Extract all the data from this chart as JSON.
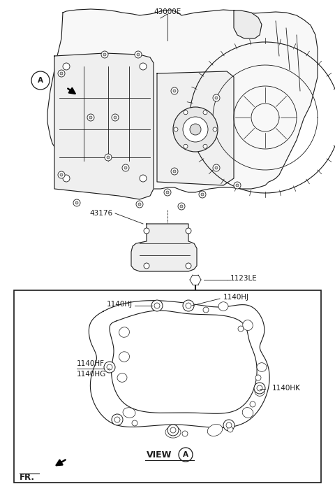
{
  "bg_color": "#ffffff",
  "lc": "#1a1a1a",
  "figsize": [
    4.8,
    7.02
  ],
  "dpi": 100,
  "label_43000E": "43000E",
  "label_43176": "43176",
  "label_1123LE": "1123LE",
  "label_1140HJ_1": "1140HJ",
  "label_1140HJ_2": "1140HJ",
  "label_1140HF": "1140HF",
  "label_1140HG": "1140HG",
  "label_1140HK": "1140HK",
  "label_VIEW": "VIEW",
  "label_A": "A",
  "label_FR": "FR.",
  "fs_label": 7.5,
  "fs_view": 9.0,
  "fs_FR": 8.5
}
